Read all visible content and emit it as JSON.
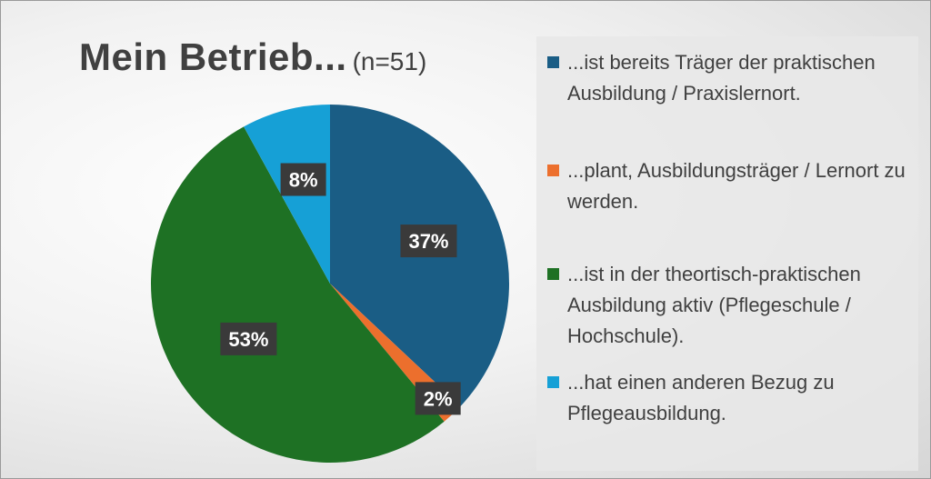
{
  "title": "Mein Betrieb...",
  "subtitle": "(n=51)",
  "colors": {
    "blue": "#1a5d85",
    "orange": "#ec6f2d",
    "green": "#1e7124",
    "lightblue": "#16a0d6"
  },
  "chart_data": {
    "type": "pie",
    "title": "Mein Betrieb... (n=51)",
    "start_angle_deg": 0,
    "direction": "clockwise",
    "legend_position": "right",
    "slices": [
      {
        "label": "...ist bereits Träger der praktischen Ausbildung / Praxislernort.",
        "value": 37,
        "display": "37%",
        "color": "#1a5d85"
      },
      {
        "label": "...plant, Ausbildungsträger / Lernort zu werden.",
        "value": 2,
        "display": "2%",
        "color": "#ec6f2d"
      },
      {
        "label": "...ist in der theortisch-praktischen Ausbildung aktiv (Pflegeschule / Hochschule).",
        "value": 53,
        "display": "53%",
        "color": "#1e7124"
      },
      {
        "label": "...hat einen anderen Bezug zu Pflegeausbildung.",
        "value": 8,
        "display": "8%",
        "color": "#16a0d6"
      }
    ]
  }
}
